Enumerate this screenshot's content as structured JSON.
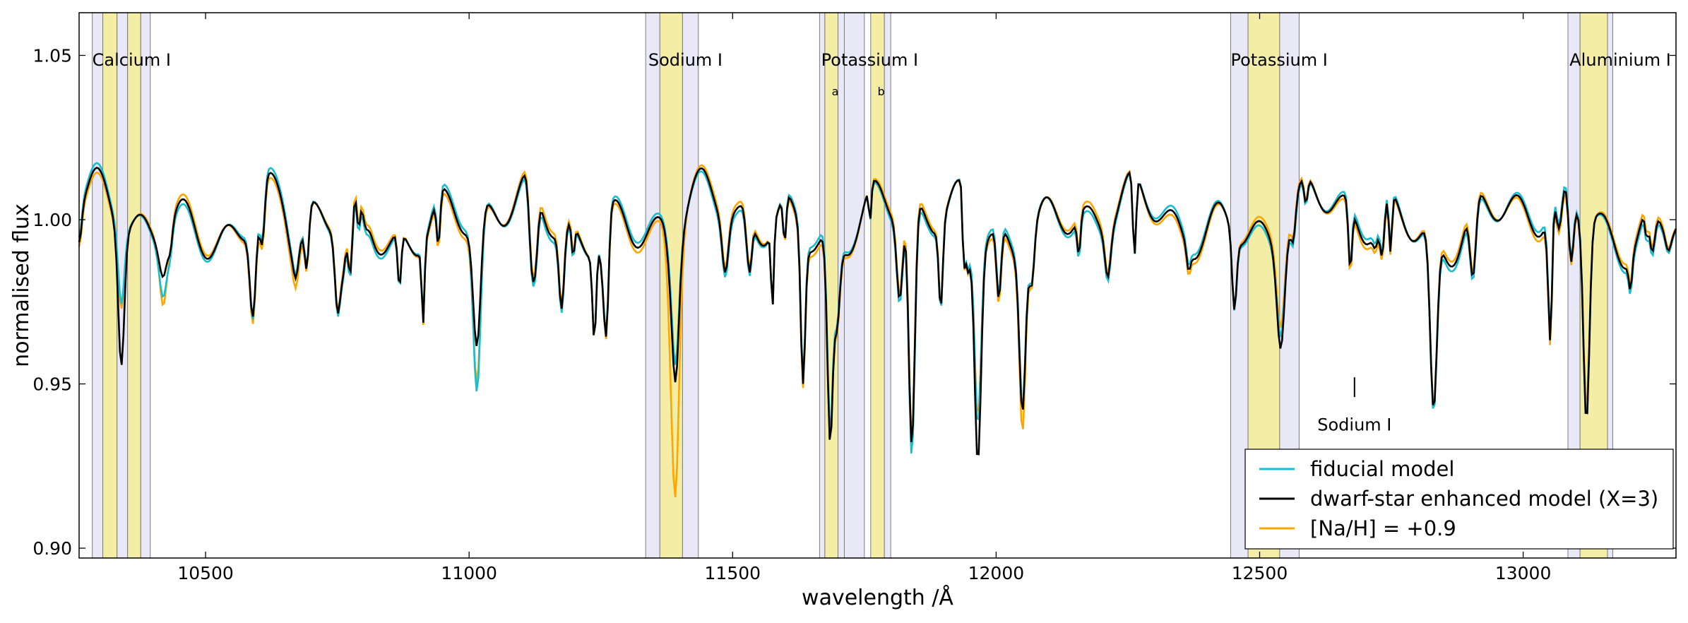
{
  "chart_data": {
    "type": "line",
    "xlabel": "wavelength /Å",
    "ylabel": "normalised flux",
    "xlim": [
      10260,
      13290
    ],
    "ylim": [
      0.897,
      1.063
    ],
    "xticks": [
      10500,
      11000,
      11500,
      12000,
      12500,
      13000
    ],
    "yticks": [
      0.9,
      0.95,
      1.0,
      1.05
    ],
    "xtick_labels": [
      "10500",
      "11000",
      "11500",
      "12000",
      "12500",
      "13000"
    ],
    "ytick_labels": [
      "0.90",
      "0.95",
      "1.00",
      "1.05"
    ],
    "grid": false,
    "legend_position": "lower-right",
    "colors": {
      "band_line": "#f4eda6",
      "band_continuum": "#e8e8f7",
      "band_edge": "#7d7d7d"
    },
    "bands": [
      {
        "type": "continuum",
        "x0": 10285,
        "x1": 10305
      },
      {
        "type": "line",
        "x0": 10305,
        "x1": 10332
      },
      {
        "type": "continuum",
        "x0": 10332,
        "x1": 10352
      },
      {
        "type": "line",
        "x0": 10352,
        "x1": 10377
      },
      {
        "type": "continuum",
        "x0": 10377,
        "x1": 10395
      },
      {
        "type": "continuum",
        "x0": 11335,
        "x1": 11362
      },
      {
        "type": "line",
        "x0": 11362,
        "x1": 11405
      },
      {
        "type": "continuum",
        "x0": 11405,
        "x1": 11435
      },
      {
        "type": "continuum",
        "x0": 11665,
        "x1": 11675
      },
      {
        "type": "line",
        "x0": 11675,
        "x1": 11700
      },
      {
        "type": "continuum",
        "x0": 11700,
        "x1": 11712
      },
      {
        "type": "continuum",
        "x0": 11712,
        "x1": 11750
      },
      {
        "type": "line",
        "x0": 11762,
        "x1": 11788
      },
      {
        "type": "continuum",
        "x0": 11788,
        "x1": 11800
      },
      {
        "type": "continuum",
        "x0": 12445,
        "x1": 12478
      },
      {
        "type": "line",
        "x0": 12478,
        "x1": 12538
      },
      {
        "type": "continuum",
        "x0": 12538,
        "x1": 12575
      },
      {
        "type": "continuum",
        "x0": 13085,
        "x1": 13108
      },
      {
        "type": "line",
        "x0": 13108,
        "x1": 13160
      },
      {
        "type": "continuum",
        "x0": 13160,
        "x1": 13170
      }
    ],
    "annotations": [
      {
        "text": "Calcium I",
        "x": 10285,
        "y": 1.049
      },
      {
        "text": "Sodium I",
        "x": 11340,
        "y": 1.049
      },
      {
        "text": "Potassium I",
        "x": 11668,
        "y": 1.049
      },
      {
        "text": "Potassium I",
        "x": 12445,
        "y": 1.049
      },
      {
        "text": "Aluminium I",
        "x": 13088,
        "y": 1.049
      },
      {
        "text": "a",
        "x": 11688,
        "y": 1.04
      },
      {
        "text": "b",
        "x": 11775,
        "y": 1.04
      },
      {
        "text": "Sodium I",
        "x": 12680,
        "y": 0.938
      }
    ],
    "marker_tick": {
      "x": 12680,
      "y0": 0.946,
      "y1": 0.952
    },
    "series": [
      {
        "name": "fiducial model",
        "color": "#17becf",
        "features": [
          [
            10340,
            0.022,
            8
          ],
          [
            10420,
            0.015,
            10
          ],
          [
            10590,
            0.03,
            8
          ],
          [
            10670,
            0.012,
            15
          ],
          [
            11015,
            0.055,
            10
          ],
          [
            11390,
            0.025,
            12
          ],
          [
            11685,
            0.04,
            8
          ],
          [
            11840,
            0.077,
            8
          ],
          [
            11965,
            0.06,
            9
          ],
          [
            12050,
            0.045,
            8
          ],
          [
            12540,
            0.025,
            10
          ],
          [
            12830,
            0.055,
            9
          ],
          [
            13120,
            0.06,
            8
          ]
        ]
      },
      {
        "name": "dwarf-star enhanced model (X=3)",
        "color": "#000000",
        "features": [
          [
            10340,
            0.04,
            8
          ],
          [
            10420,
            0.01,
            10
          ],
          [
            10590,
            0.028,
            8
          ],
          [
            10670,
            0.012,
            15
          ],
          [
            11015,
            0.04,
            10
          ],
          [
            11390,
            0.03,
            12
          ],
          [
            11685,
            0.042,
            8
          ],
          [
            11840,
            0.075,
            8
          ],
          [
            11965,
            0.07,
            9
          ],
          [
            12050,
            0.045,
            8
          ],
          [
            12540,
            0.03,
            10
          ],
          [
            12830,
            0.055,
            9
          ],
          [
            13120,
            0.06,
            8
          ]
        ]
      },
      {
        "name": "[Na/H] = +0.9",
        "color": "#ffa500",
        "features": [
          [
            10340,
            0.022,
            8
          ],
          [
            10420,
            0.02,
            10
          ],
          [
            10590,
            0.029,
            8
          ],
          [
            10670,
            0.014,
            15
          ],
          [
            11015,
            0.05,
            10
          ],
          [
            11390,
            0.065,
            12
          ],
          [
            11685,
            0.04,
            8
          ],
          [
            11840,
            0.074,
            8
          ],
          [
            11965,
            0.055,
            9
          ],
          [
            12050,
            0.05,
            8
          ],
          [
            12540,
            0.025,
            10
          ],
          [
            12830,
            0.056,
            9
          ],
          [
            13120,
            0.055,
            8
          ]
        ]
      }
    ]
  }
}
